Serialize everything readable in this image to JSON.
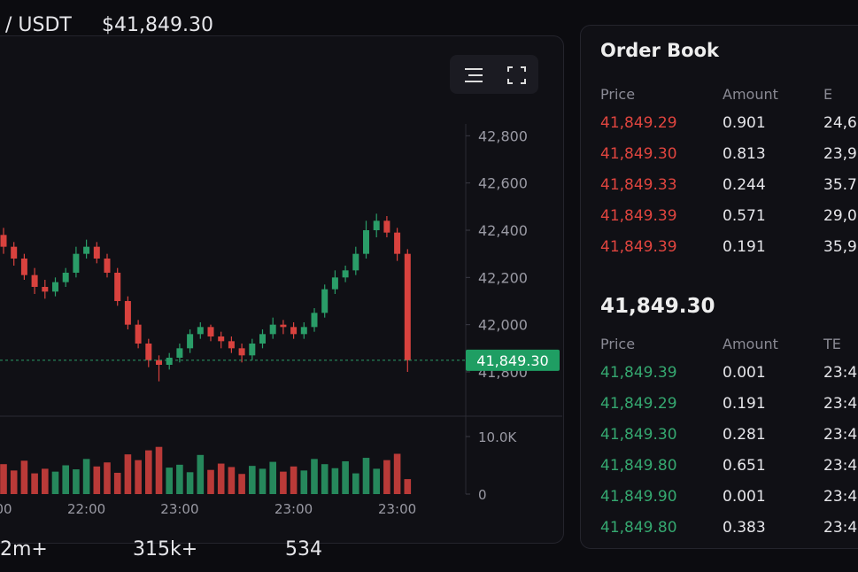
{
  "header": {
    "pair": "/ USDT",
    "price": "$41,849.30"
  },
  "chart_data": {
    "type": "candlestick",
    "categories": [
      "00",
      null,
      null,
      null,
      null,
      null,
      null,
      null,
      "22:00",
      null,
      null,
      null,
      null,
      null,
      null,
      null,
      null,
      "23:00",
      null,
      null,
      null,
      null,
      null,
      null,
      null,
      null,
      null,
      null,
      "23:00",
      null,
      null,
      null,
      null,
      null,
      null,
      null,
      null,
      null,
      "23:00",
      null
    ],
    "open": [
      42380,
      42330,
      42280,
      42210,
      42160,
      42140,
      42180,
      42220,
      42300,
      42330,
      42280,
      42220,
      42100,
      42000,
      41920,
      41850,
      41830,
      41860,
      41900,
      41960,
      41990,
      41950,
      41930,
      41900,
      41870,
      41920,
      41960,
      42000,
      41990,
      41960,
      41990,
      42050,
      42150,
      42200,
      42230,
      42300,
      42400,
      42440,
      42390,
      42300
    ],
    "high": [
      42410,
      42350,
      42300,
      42240,
      42190,
      42200,
      42240,
      42330,
      42360,
      42350,
      42300,
      42240,
      42120,
      42020,
      41940,
      41870,
      41880,
      41920,
      41980,
      42010,
      42000,
      41970,
      41950,
      41920,
      41940,
      41980,
      42030,
      42020,
      42010,
      42010,
      42070,
      42170,
      42230,
      42250,
      42330,
      42440,
      42470,
      42460,
      42410,
      42320
    ],
    "low": [
      42300,
      42250,
      42190,
      42130,
      42110,
      42120,
      42160,
      42200,
      42280,
      42260,
      42200,
      42080,
      41980,
      41900,
      41820,
      41760,
      41810,
      41840,
      41880,
      41940,
      41930,
      41900,
      41880,
      41840,
      41850,
      41900,
      41940,
      41960,
      41940,
      41940,
      41970,
      42030,
      42130,
      42180,
      42210,
      42280,
      42370,
      42370,
      42270,
      41800
    ],
    "close": [
      42330,
      42280,
      42210,
      42160,
      42140,
      42180,
      42220,
      42300,
      42330,
      42280,
      42220,
      42100,
      42000,
      41920,
      41850,
      41830,
      41860,
      41900,
      41960,
      41990,
      41950,
      41930,
      41900,
      41870,
      41920,
      41960,
      42000,
      41990,
      41960,
      41990,
      42050,
      42150,
      42200,
      42230,
      42300,
      42400,
      42440,
      42390,
      42300,
      41849.3
    ],
    "up_color": "#2a9d68",
    "down_color": "#d8423e",
    "ylim": [
      41650,
      42850
    ],
    "yticks": [
      {
        "value": 41800,
        "label": "41,800"
      },
      {
        "value": 42000,
        "label": "42,000"
      },
      {
        "value": 42200,
        "label": "42,200"
      },
      {
        "value": 42400,
        "label": "42,400"
      },
      {
        "value": 42600,
        "label": "42,600"
      },
      {
        "value": 42800,
        "label": "42,800"
      }
    ],
    "last_price": {
      "value": 41849.3,
      "label": "41,849.30"
    },
    "volume": {
      "values": [
        5200,
        4100,
        5800,
        3600,
        4400,
        3900,
        5000,
        4300,
        6100,
        4800,
        5500,
        3700,
        6900,
        5900,
        7600,
        8200,
        4600,
        5100,
        3800,
        6800,
        4200,
        5300,
        4700,
        3500,
        4900,
        4400,
        5600,
        3900,
        4800,
        4100,
        6100,
        5200,
        4500,
        5700,
        3600,
        6300,
        4400,
        5900,
        7000,
        2600
      ],
      "ylim": [
        0,
        12000
      ],
      "yticks": [
        0,
        {
          "value": 10000,
          "label": "10.0K"
        }
      ]
    }
  },
  "order_book": {
    "title": "Order Book",
    "asks": {
      "headers": [
        "Price",
        "Amount",
        "E"
      ],
      "rows": [
        [
          "41,849.29",
          "0.901",
          "24,6"
        ],
        [
          "41,849.30",
          "0.813",
          "23,9"
        ],
        [
          "41,849.33",
          "0.244",
          "35.7"
        ],
        [
          "41,849.39",
          "0.571",
          "29,0"
        ],
        [
          "41,849.39",
          "0.191",
          "35,9"
        ]
      ]
    },
    "last_price": "41,849.30",
    "trades": {
      "headers": [
        "Price",
        "Amount",
        "TE"
      ],
      "rows": [
        [
          "41,849.39",
          "0.001",
          "23:4"
        ],
        [
          "41,849.29",
          "0.191",
          "23:4"
        ],
        [
          "41,849.30",
          "0.281",
          "23:4"
        ],
        [
          "41,849.80",
          "0.651",
          "23:4"
        ],
        [
          "41,849.90",
          "0.001",
          "23:4"
        ],
        [
          "41,849.80",
          "0.383",
          "23:4"
        ]
      ]
    }
  },
  "stats": [
    "2m+",
    "315k+",
    "534"
  ]
}
